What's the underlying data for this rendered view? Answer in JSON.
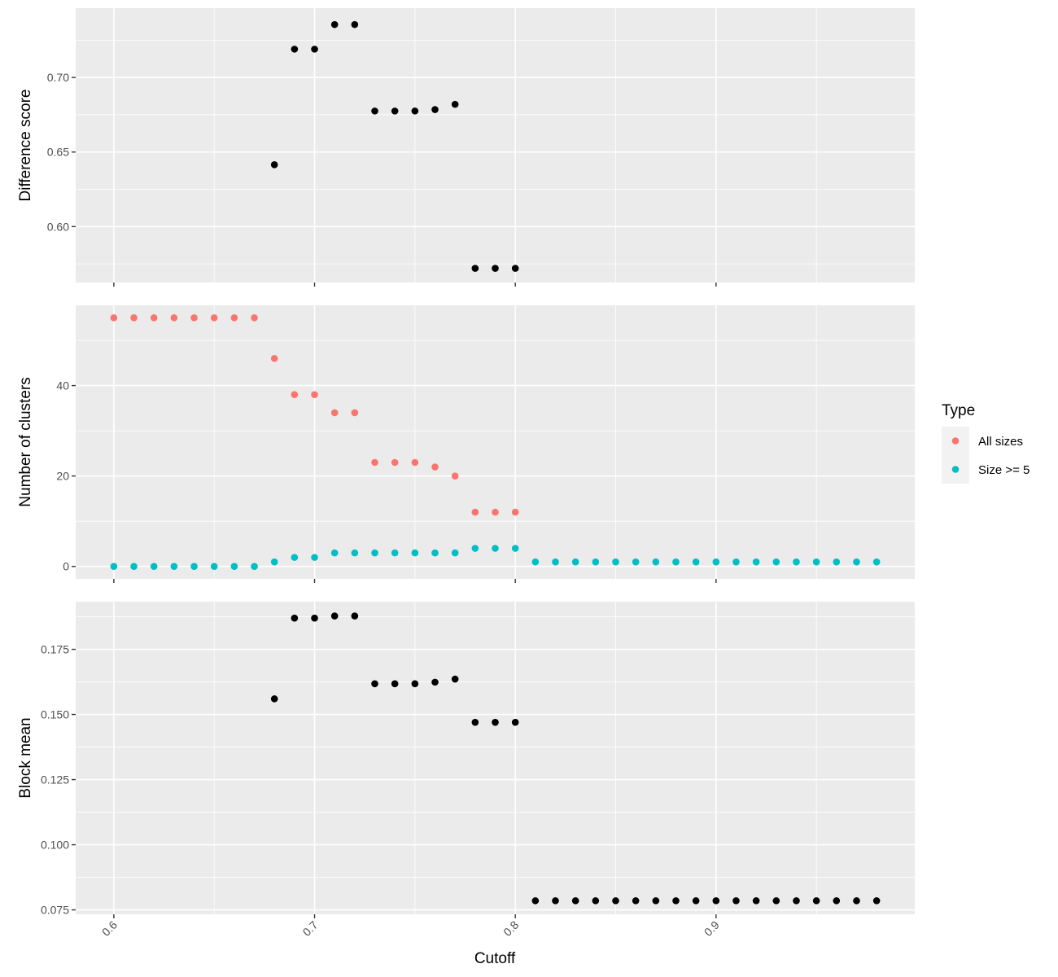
{
  "chart_data": {
    "type": "scatter",
    "xlabel": "Cutoff",
    "xlim": [
      0.581,
      0.999
    ],
    "xticks": [
      "0.6",
      "0.7",
      "0.8",
      "0.9"
    ],
    "xtick_values": [
      0.6,
      0.7,
      0.8,
      0.9
    ],
    "xminor_values": [
      0.65,
      0.75,
      0.85,
      0.95
    ],
    "grid": true,
    "legend": {
      "title": "Type",
      "placement": "right",
      "entries": [
        {
          "label": "All sizes",
          "color": "#F8766D"
        },
        {
          "label": "Size >= 5",
          "color": "#00BFC4"
        }
      ]
    },
    "panels": [
      {
        "ylabel": "Difference score",
        "ylim": [
          0.5625,
          0.7465
        ],
        "yticks": [
          "0.60",
          "0.65",
          "0.70"
        ],
        "ytick_values": [
          0.6,
          0.65,
          0.7
        ],
        "yminor_values": [
          0.575,
          0.625,
          0.675,
          0.725
        ],
        "series": [
          {
            "color": "#000000",
            "x": [
              0.68,
              0.69,
              0.7,
              0.71,
              0.72,
              0.73,
              0.74,
              0.75,
              0.76,
              0.77,
              0.78,
              0.79,
              0.8
            ],
            "y": [
              0.6415,
              0.719,
              0.719,
              0.7355,
              0.7355,
              0.6775,
              0.6775,
              0.6775,
              0.6785,
              0.682,
              0.572,
              0.572,
              0.572
            ]
          }
        ]
      },
      {
        "ylabel": "Number of clusters",
        "ylim": [
          -2.75,
          57.75
        ],
        "yticks": [
          "0",
          "20",
          "40"
        ],
        "ytick_values": [
          0,
          20,
          40
        ],
        "yminor_values": [
          10,
          30,
          50
        ],
        "series": [
          {
            "name": "All sizes",
            "color": "#F8766D",
            "x": [
              0.6,
              0.61,
              0.62,
              0.63,
              0.64,
              0.65,
              0.66,
              0.67,
              0.68,
              0.69,
              0.7,
              0.71,
              0.72,
              0.73,
              0.74,
              0.75,
              0.76,
              0.77,
              0.78,
              0.79,
              0.8
            ],
            "y": [
              55,
              55,
              55,
              55,
              55,
              55,
              55,
              55,
              46,
              38,
              38,
              34,
              34,
              23,
              23,
              23,
              22,
              20,
              12,
              12,
              12
            ]
          },
          {
            "name": "Size >= 5",
            "color": "#00BFC4",
            "x": [
              0.6,
              0.61,
              0.62,
              0.63,
              0.64,
              0.65,
              0.66,
              0.67,
              0.68,
              0.69,
              0.7,
              0.71,
              0.72,
              0.73,
              0.74,
              0.75,
              0.76,
              0.77,
              0.78,
              0.79,
              0.8,
              0.81,
              0.82,
              0.83,
              0.84,
              0.85,
              0.86,
              0.87,
              0.88,
              0.89,
              0.9,
              0.91,
              0.92,
              0.93,
              0.94,
              0.95,
              0.96,
              0.97,
              0.98
            ],
            "y": [
              0,
              0,
              0,
              0,
              0,
              0,
              0,
              0,
              1,
              2,
              2,
              3,
              3,
              3,
              3,
              3,
              3,
              3,
              4,
              4,
              4,
              1,
              1,
              1,
              1,
              1,
              1,
              1,
              1,
              1,
              1,
              1,
              1,
              1,
              1,
              1,
              1,
              1,
              1
            ]
          }
        ]
      },
      {
        "ylabel": "Block mean",
        "ylim": [
          0.0733,
          0.1933
        ],
        "yticks": [
          "0.075",
          "0.100",
          "0.125",
          "0.150",
          "0.175"
        ],
        "ytick_values": [
          0.075,
          0.1,
          0.125,
          0.15,
          0.175
        ],
        "yminor_values": [
          0.0875,
          0.1125,
          0.1375,
          0.1625,
          0.1875
        ],
        "series": [
          {
            "color": "#000000",
            "x": [
              0.68,
              0.69,
              0.7,
              0.71,
              0.72,
              0.73,
              0.74,
              0.75,
              0.76,
              0.77,
              0.78,
              0.79,
              0.8,
              0.81,
              0.82,
              0.83,
              0.84,
              0.85,
              0.86,
              0.87,
              0.88,
              0.89,
              0.9,
              0.91,
              0.92,
              0.93,
              0.94,
              0.95,
              0.96,
              0.97,
              0.98
            ],
            "y": [
              0.156,
              0.187,
              0.187,
              0.1878,
              0.1878,
              0.1618,
              0.1618,
              0.1618,
              0.1624,
              0.1636,
              0.147,
              0.147,
              0.147,
              0.0785,
              0.0785,
              0.0785,
              0.0785,
              0.0785,
              0.0785,
              0.0785,
              0.0785,
              0.0785,
              0.0785,
              0.0785,
              0.0785,
              0.0785,
              0.0785,
              0.0785,
              0.0785,
              0.0785,
              0.0785
            ]
          }
        ]
      }
    ]
  }
}
